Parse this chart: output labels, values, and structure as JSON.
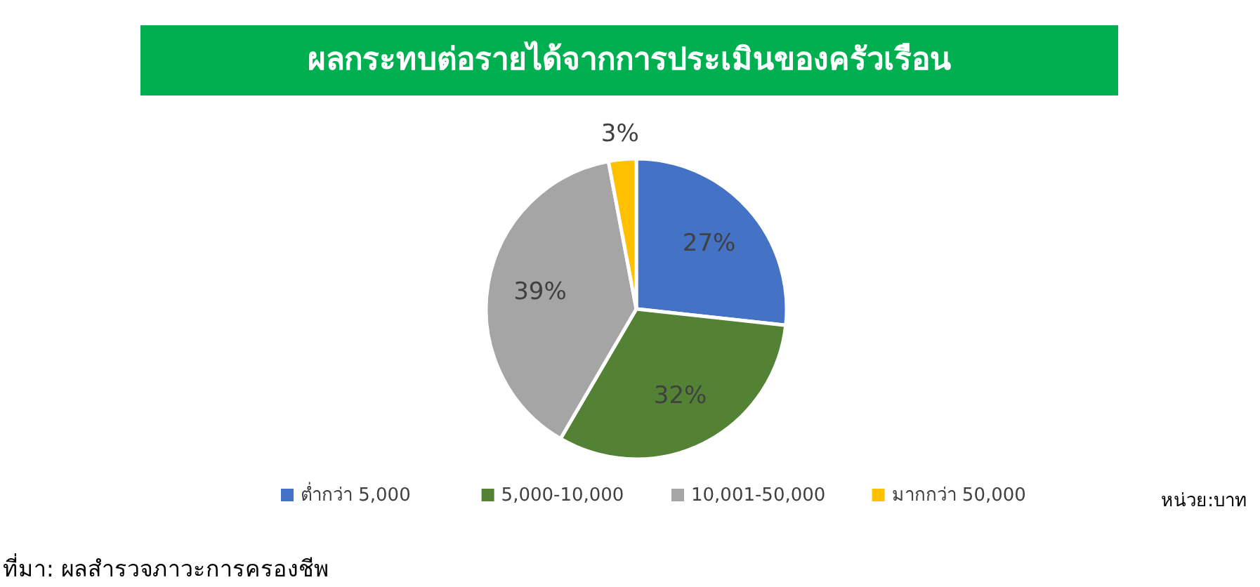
{
  "chart_data": {
    "type": "pie",
    "title": "ผลกระทบต่อรายได้จากการประเมินของครัวเรือน",
    "categories": [
      "ต่ำกว่า 5,000",
      "5,000-10,000",
      "10,001-50,000",
      "มากกว่า 50,000"
    ],
    "values": [
      27,
      32,
      39,
      3
    ],
    "colors": [
      "#4472c4",
      "#548235",
      "#a5a5a5",
      "#ffc000"
    ],
    "value_labels": [
      "27%",
      "32%",
      "39%",
      "3%"
    ],
    "legend": "bottom",
    "annotations": [
      "หน่วย:บาท",
      "ที่มา: ผลสำรวจภาวะการครองชีพ"
    ]
  }
}
